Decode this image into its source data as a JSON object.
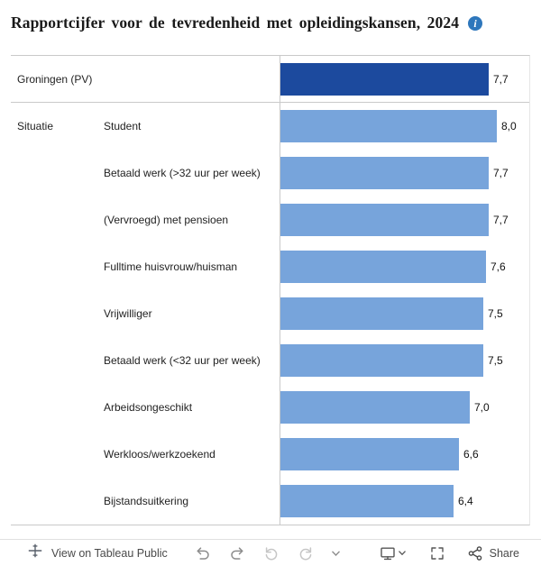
{
  "title": "Rapportcijfer voor de tevredenheid met opleidingskansen, 2024",
  "info_icon_glyph": "i",
  "chart_data": {
    "type": "bar",
    "orientation": "horizontal",
    "title": "Rapportcijfer voor de tevredenheid met opleidingskansen, 2024",
    "x_max": 9.2,
    "xlim": [
      0,
      9.2
    ],
    "bar_color": "#77a4db",
    "highlight_color": "#1c4a9e",
    "grid": false,
    "legend": false,
    "rows": [
      {
        "group": "Groningen (PV)",
        "category": "",
        "value": 7.7,
        "display": "7,7",
        "highlight": true
      },
      {
        "group": "Situatie",
        "category": "Student",
        "value": 8.0,
        "display": "8,0",
        "highlight": false
      },
      {
        "group": "",
        "category": "Betaald werk (>32 uur per week)",
        "value": 7.7,
        "display": "7,7",
        "highlight": false
      },
      {
        "group": "",
        "category": "(Vervroegd) met pensioen",
        "value": 7.7,
        "display": "7,7",
        "highlight": false
      },
      {
        "group": "",
        "category": "Fulltime huisvrouw/huisman",
        "value": 7.6,
        "display": "7,6",
        "highlight": false
      },
      {
        "group": "",
        "category": "Vrijwilliger",
        "value": 7.5,
        "display": "7,5",
        "highlight": false
      },
      {
        "group": "",
        "category": "Betaald werk (<32 uur per week)",
        "value": 7.5,
        "display": "7,5",
        "highlight": false
      },
      {
        "group": "",
        "category": "Arbeidsongeschikt",
        "value": 7.0,
        "display": "7,0",
        "highlight": false
      },
      {
        "group": "",
        "category": "Werkloos/werkzoekend",
        "value": 6.6,
        "display": "6,6",
        "highlight": false
      },
      {
        "group": "",
        "category": "Bijstandsuitkering",
        "value": 6.4,
        "display": "6,4",
        "highlight": false
      }
    ]
  },
  "toolbar": {
    "view_on_label": "View on Tableau Public",
    "share_label": "Share"
  }
}
